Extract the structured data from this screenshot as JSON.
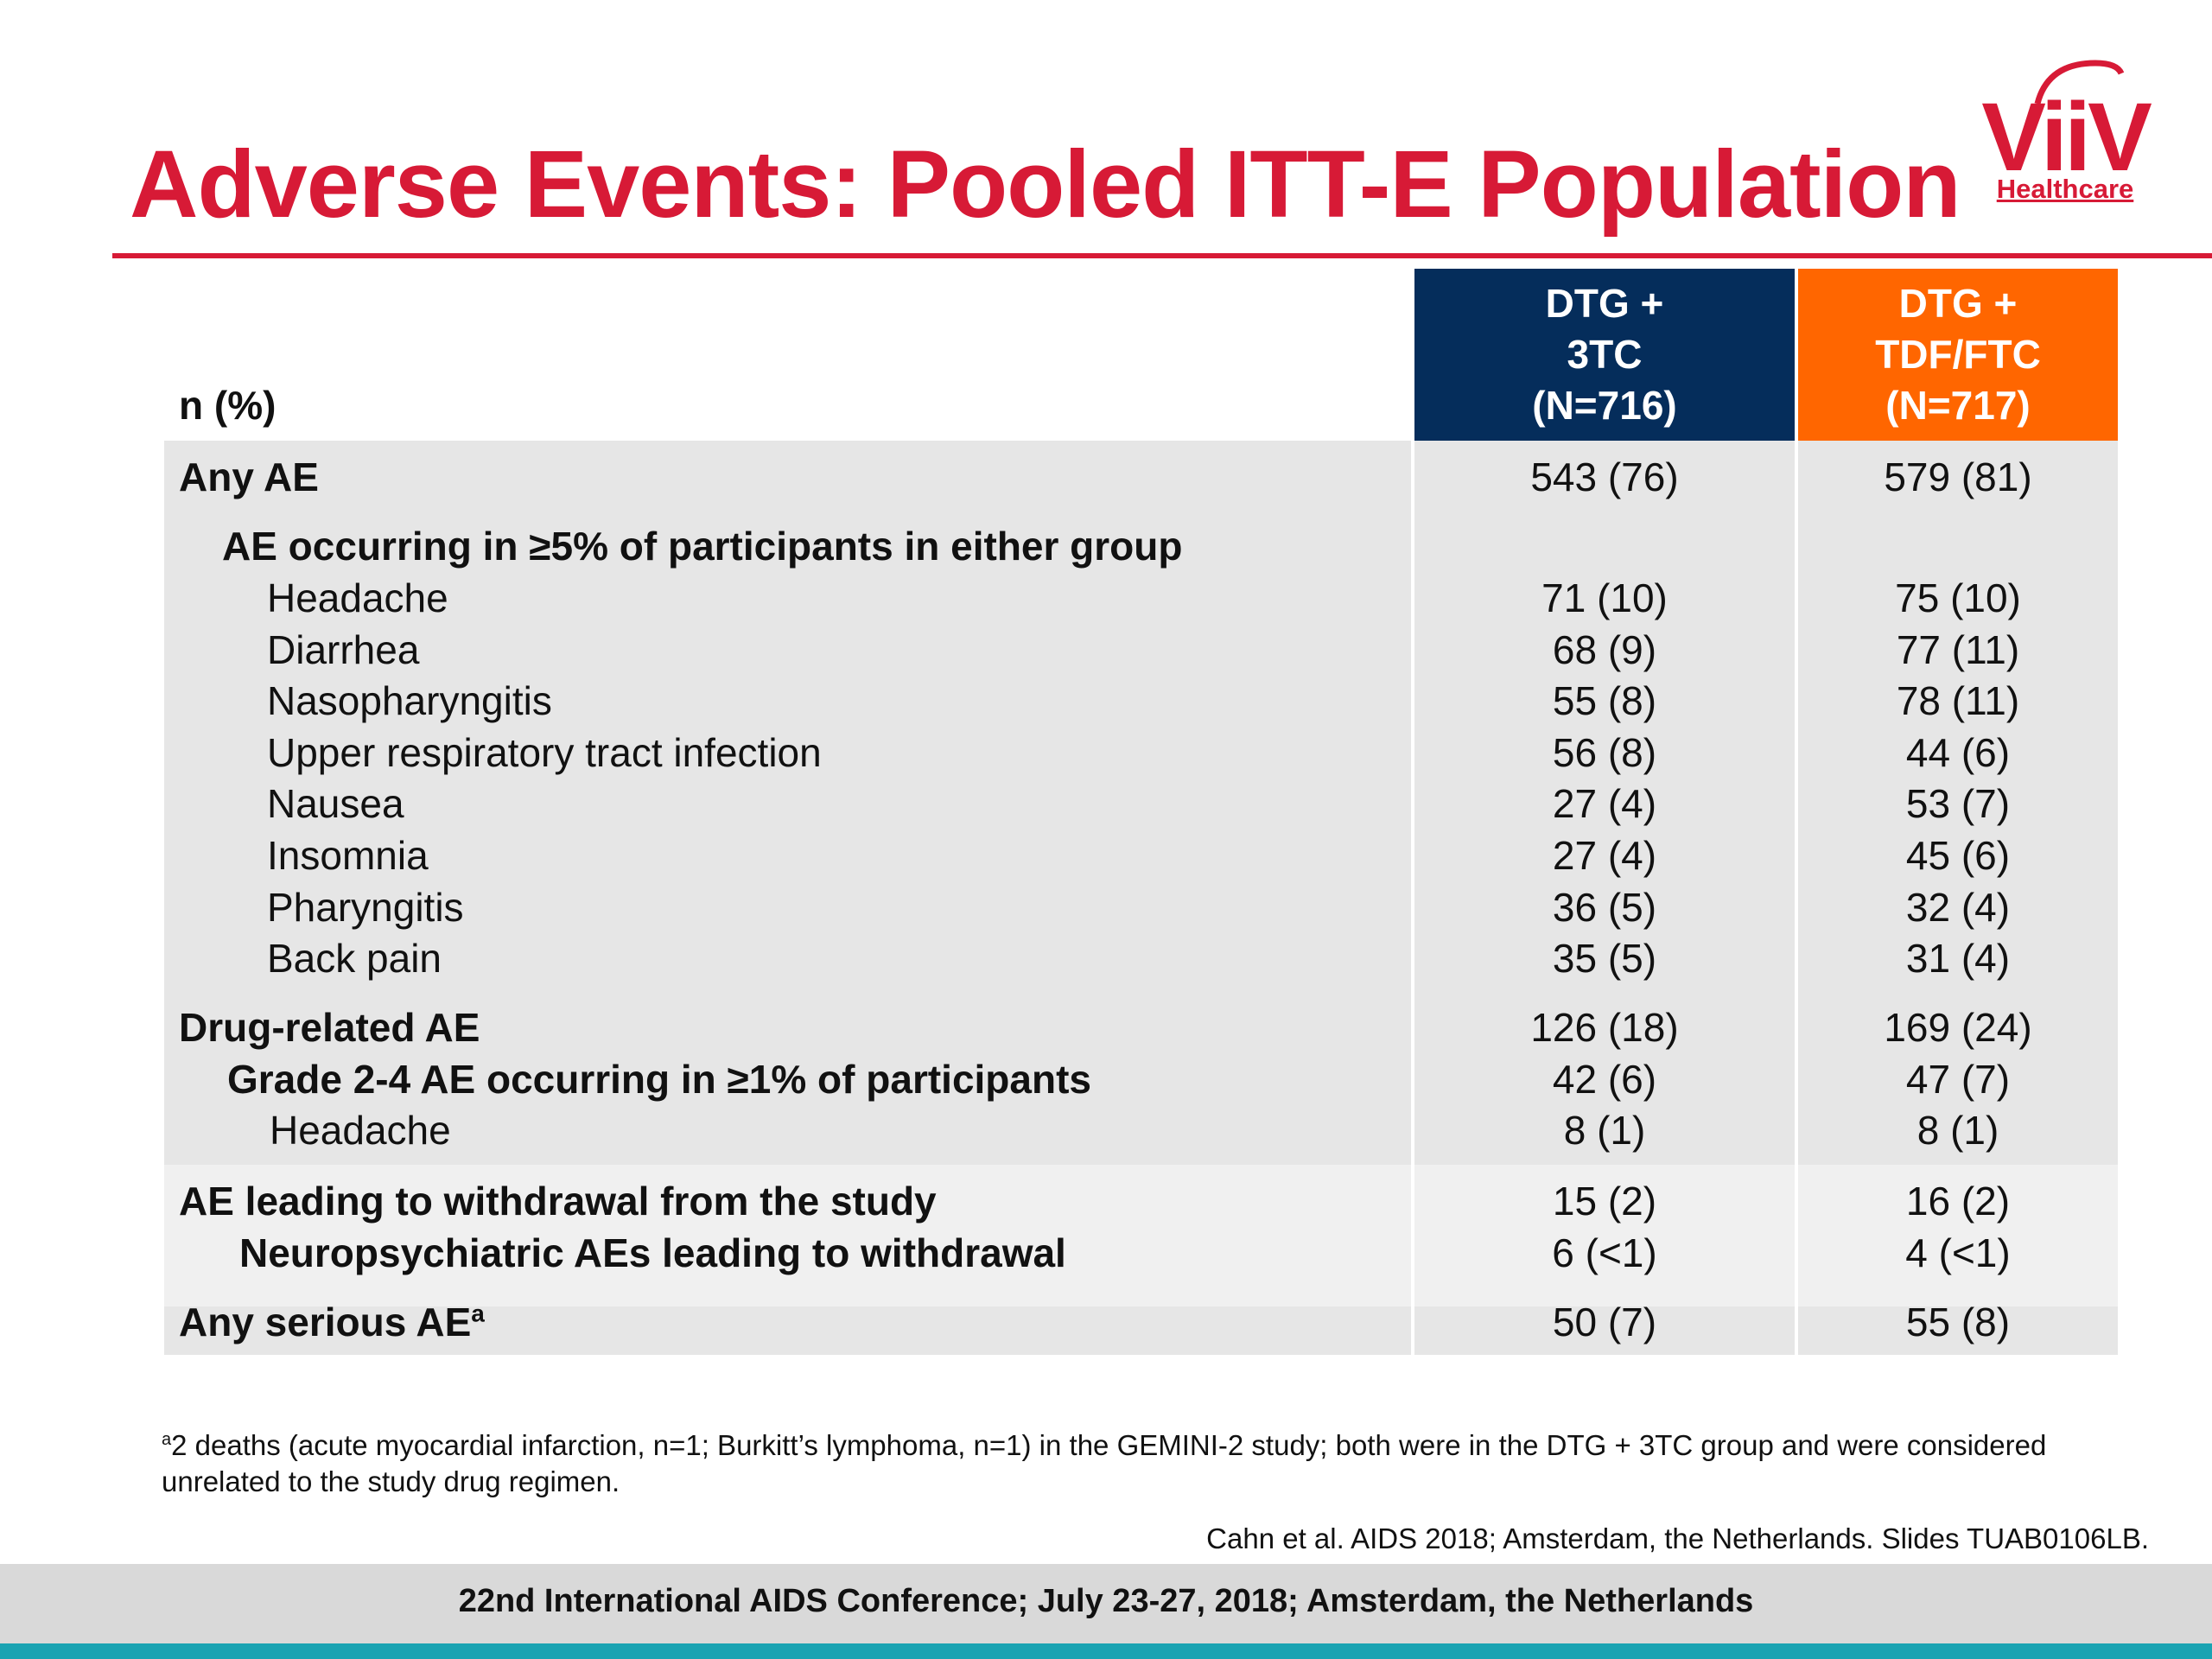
{
  "title": "Adverse Events: Pooled ITT-E Population",
  "logo": {
    "name": "ViiV",
    "sub": "Healthcare"
  },
  "table": {
    "row_header": "n (%)",
    "columns": [
      {
        "line1": "DTG +",
        "line2": "3TC",
        "line3": "(N=716)"
      },
      {
        "line1": "DTG +",
        "line2": "TDF/FTC",
        "line3": "(N=717)"
      }
    ],
    "rows": [
      {
        "label": "Any AE",
        "v1": "543 (76)",
        "v2": "579 (81)"
      },
      {
        "label": "AE occurring in ≥5% of participants in either group",
        "v1": "",
        "v2": ""
      },
      {
        "label": "Headache",
        "v1": "71 (10)",
        "v2": "75 (10)"
      },
      {
        "label": "Diarrhea",
        "v1": "68 (9)",
        "v2": "77 (11)"
      },
      {
        "label": "Nasopharyngitis",
        "v1": "55 (8)",
        "v2": "78 (11)"
      },
      {
        "label": "Upper respiratory tract infection",
        "v1": "56 (8)",
        "v2": "44 (6)"
      },
      {
        "label": "Nausea",
        "v1": "27 (4)",
        "v2": "53 (7)"
      },
      {
        "label": "Insomnia",
        "v1": "27 (4)",
        "v2": "45 (6)"
      },
      {
        "label": "Pharyngitis",
        "v1": "36 (5)",
        "v2": "32 (4)"
      },
      {
        "label": "Back pain",
        "v1": "35 (5)",
        "v2": "31 (4)"
      },
      {
        "label": "Drug-related AE",
        "v1": "126 (18)",
        "v2": "169 (24)"
      },
      {
        "label": "Grade 2-4 AE occurring in ≥1% of participants",
        "v1": "42 (6)",
        "v2": "47 (7)"
      },
      {
        "label": "Headache",
        "v1": "8 (1)",
        "v2": "8 (1)"
      },
      {
        "label": "AE leading to withdrawal from the study",
        "v1": "15 (2)",
        "v2": "16 (2)"
      },
      {
        "label": "Neuropsychiatric AEs leading to withdrawal",
        "v1": "6 (<1)",
        "v2": "4 (<1)"
      },
      {
        "label": "Any serious AE",
        "label_sup": "a",
        "v1": "50 (7)",
        "v2": "55 (8)"
      }
    ]
  },
  "footnote": {
    "marker": "a",
    "text": "2 deaths (acute myocardial infarction, n=1; Burkitt’s lymphoma, n=1) in the GEMINI-2 study; both were in the DTG + 3TC group and were considered unrelated to the study drug regimen."
  },
  "citation": "Cahn et al. AIDS 2018; Amsterdam, the Netherlands. Slides TUAB0106LB.",
  "footer": "22nd International AIDS Conference; July 23-27, 2018; Amsterdam, the Netherlands",
  "colors": {
    "title_red": "#d71a36",
    "col1_navy": "#052d5b",
    "col2_orange": "#ff6600",
    "band_gray": "#e6e6e6",
    "footer_teal": "#1aa3b2"
  }
}
